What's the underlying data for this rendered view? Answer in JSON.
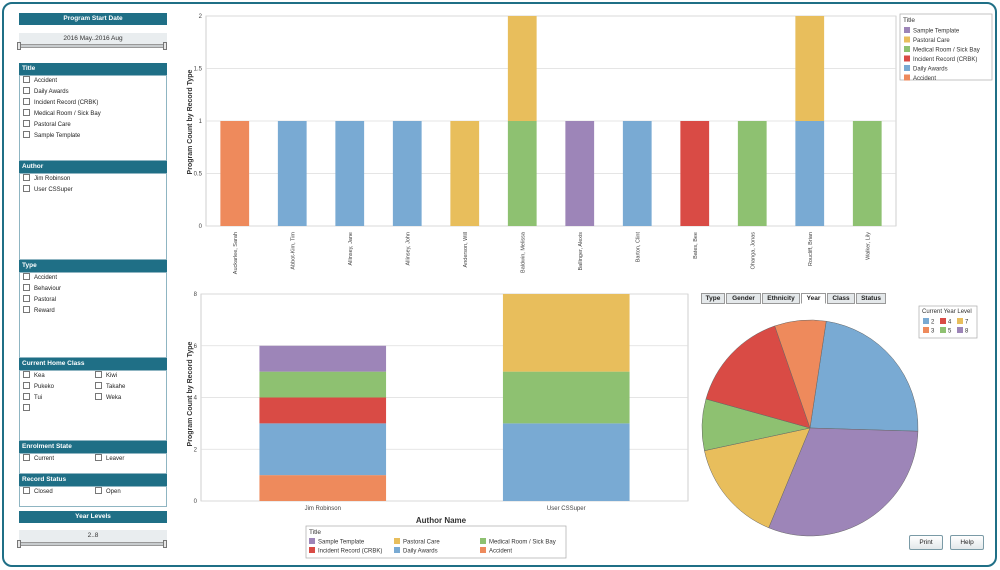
{
  "filters": {
    "program_start_date": {
      "header": "Program Start Date",
      "value": "2016 May..2016 Aug"
    },
    "title": {
      "header": "Title",
      "options": [
        "Accident",
        "Daily Awards",
        "Incident Record (CRBK)",
        "Medical Room / Sick Bay",
        "Pastoral Care",
        "Sample Template"
      ]
    },
    "author": {
      "header": "Author",
      "options": [
        "Jim Robinson",
        "User CSSuper"
      ]
    },
    "type": {
      "header": "Type",
      "options": [
        "Accident",
        "Behaviour",
        "Pastoral",
        "Reward"
      ]
    },
    "current_home_class": {
      "header": "Current Home Class",
      "options_left": [
        "Kea",
        "Pukeko",
        "Tui",
        ""
      ],
      "options_right": [
        "Kiwi",
        "Takahe",
        "Weka"
      ]
    },
    "enrolment_state": {
      "header": "Enrolment State",
      "options": [
        "Current",
        "Leaver"
      ]
    },
    "record_status": {
      "header": "Record Status",
      "options": [
        "Closed",
        "Open"
      ]
    },
    "year_levels": {
      "header": "Year Levels",
      "value": "2..8"
    }
  },
  "colors": {
    "Sample Template": "#9d85b8",
    "Pastoral Care": "#e8be5c",
    "Medical Room / Sick Bay": "#8ec171",
    "Incident Record (CRBK)": "#d94b45",
    "Daily Awards": "#79aad3",
    "Accident": "#ee8a5c",
    "Year 2": "#79aad3",
    "Year 3": "#ee8a5c",
    "Year 4": "#d94b45",
    "Year 5": "#8ec171",
    "Year 7": "#e8be5c",
    "Year 8": "#9d85b8"
  },
  "chart_data": [
    {
      "type": "bar",
      "stacked": true,
      "ylabel": "Program Count by Record Type",
      "xlabel": "",
      "ylim": [
        0,
        2
      ],
      "yticks": [
        "0",
        "0.5",
        "1",
        "1.5",
        "2"
      ],
      "grid": true,
      "legend_title": "Title",
      "legend_position": "top-right",
      "legend": [
        "Sample Template",
        "Pastoral Care",
        "Medical Room / Sick Bay",
        "Incident Record (CRBK)",
        "Daily Awards",
        "Accident"
      ],
      "categories": [
        "Auckarlee, Sarah",
        "Abbot-Kim, Tim",
        "Allinsey, Jane",
        "Allinsey, John",
        "Anderson, Will",
        "Baldwin, Melissa",
        "Ballinger, Alexis",
        "Barton, Clint",
        "Bates, Bee",
        "Ohanga, Jonas",
        "Roucliff, Brian",
        "Walker, Lily"
      ],
      "series": [
        {
          "name": "Accident",
          "values": [
            1,
            0,
            0,
            0,
            0,
            0,
            0,
            0,
            0,
            0,
            0,
            0
          ]
        },
        {
          "name": "Daily Awards",
          "values": [
            0,
            1,
            1,
            1,
            0,
            0,
            0,
            1,
            0,
            0,
            1,
            0
          ]
        },
        {
          "name": "Incident Record (CRBK)",
          "values": [
            0,
            0,
            0,
            0,
            0,
            0,
            0,
            0,
            1,
            0,
            0,
            0
          ]
        },
        {
          "name": "Medical Room / Sick Bay",
          "values": [
            0,
            0,
            0,
            0,
            0,
            1,
            0,
            0,
            0,
            1,
            0,
            1
          ]
        },
        {
          "name": "Pastoral Care",
          "values": [
            0,
            0,
            0,
            0,
            1,
            1,
            0,
            0,
            0,
            0,
            1,
            0
          ]
        },
        {
          "name": "Sample Template",
          "values": [
            0,
            0,
            0,
            0,
            0,
            0,
            1,
            0,
            0,
            0,
            0,
            0
          ]
        }
      ]
    },
    {
      "type": "bar",
      "stacked": true,
      "ylabel": "Program Count by Record Type",
      "xlabel": "Author Name",
      "ylim": [
        0,
        8
      ],
      "yticks": [
        "0",
        "2",
        "4",
        "6",
        "8"
      ],
      "grid": true,
      "legend_title": "Title",
      "legend_position": "bottom",
      "legend": [
        "Sample Template",
        "Pastoral Care",
        "Medical Room / Sick Bay",
        "Incident Record (CRBK)",
        "Daily Awards",
        "Accident"
      ],
      "categories": [
        "Jim Robinson",
        "User CSSuper"
      ],
      "series": [
        {
          "name": "Accident",
          "values": [
            1,
            0
          ]
        },
        {
          "name": "Daily Awards",
          "values": [
            2,
            3
          ]
        },
        {
          "name": "Incident Record (CRBK)",
          "values": [
            1,
            0
          ]
        },
        {
          "name": "Medical Room / Sick Bay",
          "values": [
            1,
            2
          ]
        },
        {
          "name": "Pastoral Care",
          "values": [
            0,
            3
          ]
        },
        {
          "name": "Sample Template",
          "values": [
            1,
            0
          ]
        }
      ]
    },
    {
      "type": "pie",
      "legend_title": "Current Year Level",
      "legend_position": "top-right",
      "legend": [
        "2",
        "3",
        "4",
        "5",
        "7",
        "8"
      ],
      "slices": [
        {
          "label": "2",
          "value": 3
        },
        {
          "label": "8",
          "value": 4
        },
        {
          "label": "7",
          "value": 2
        },
        {
          "label": "5",
          "value": 1
        },
        {
          "label": "4",
          "value": 2
        },
        {
          "label": "3",
          "value": 1
        }
      ]
    }
  ],
  "tabs": [
    "Type",
    "Gender",
    "Ethnicity",
    "Year",
    "Class",
    "Status"
  ],
  "active_tab": "Year",
  "buttons": {
    "print": "Print",
    "help": "Help"
  }
}
